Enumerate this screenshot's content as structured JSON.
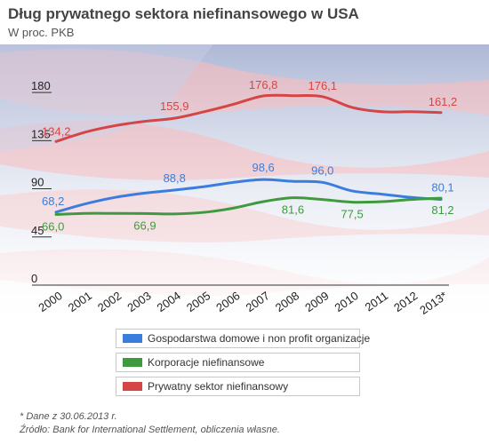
{
  "title": "Dług prywatnego sektora niefinansowego w USA",
  "subtitle": "W proc. PKB",
  "chart_data": {
    "type": "line",
    "x": [
      "2000",
      "2001",
      "2002",
      "2003",
      "2004",
      "2005",
      "2006",
      "2007",
      "2008",
      "2009",
      "2010",
      "2011",
      "2012",
      "2013*"
    ],
    "ylim": [
      0,
      200
    ],
    "yticks": [
      0,
      45,
      90,
      135,
      180
    ],
    "grid": false,
    "legend_position": "bottom",
    "series": [
      {
        "name": "Gospodarstwa domowe i non profit organizacje",
        "color": "#3b7ddd",
        "values": [
          68.2,
          76,
          82,
          86,
          88.8,
          92,
          96,
          98.6,
          97,
          96.0,
          88,
          85,
          82,
          80.1
        ],
        "labels": [
          {
            "index": 0,
            "text": "68,2"
          },
          {
            "index": 4,
            "text": "88,8"
          },
          {
            "index": 7,
            "text": "98,6"
          },
          {
            "index": 9,
            "text": "96,0"
          },
          {
            "index": 13,
            "text": "80,1"
          }
        ]
      },
      {
        "name": "Korporacje niefinansowe",
        "color": "#3f9a3f",
        "values": [
          66.0,
          67,
          67,
          66.9,
          66.5,
          68,
          72,
          78,
          81.6,
          80,
          77.5,
          78,
          80,
          81.2
        ],
        "labels": [
          {
            "index": 0,
            "text": "66,0"
          },
          {
            "index": 3,
            "text": "66,9"
          },
          {
            "index": 8,
            "text": "81,6"
          },
          {
            "index": 10,
            "text": "77,5"
          },
          {
            "index": 13,
            "text": "81,2"
          }
        ]
      },
      {
        "name": "Prywatny sektor niefinansowy",
        "color": "#d64545",
        "values": [
          134.2,
          143,
          149,
          153,
          155.9,
          162,
          169,
          176.8,
          177,
          176.1,
          166,
          162,
          162,
          161.2
        ],
        "labels": [
          {
            "index": 0,
            "text": "134,2"
          },
          {
            "index": 4,
            "text": "155,9"
          },
          {
            "index": 7,
            "text": "176,8"
          },
          {
            "index": 9,
            "text": "176,1"
          },
          {
            "index": 13,
            "text": "161,2"
          }
        ]
      }
    ]
  },
  "footnote": {
    "line1": "* Dane z 30.06.2013 r.",
    "line2": "Źródło: Bank for International Settlement, obliczenia własne."
  }
}
